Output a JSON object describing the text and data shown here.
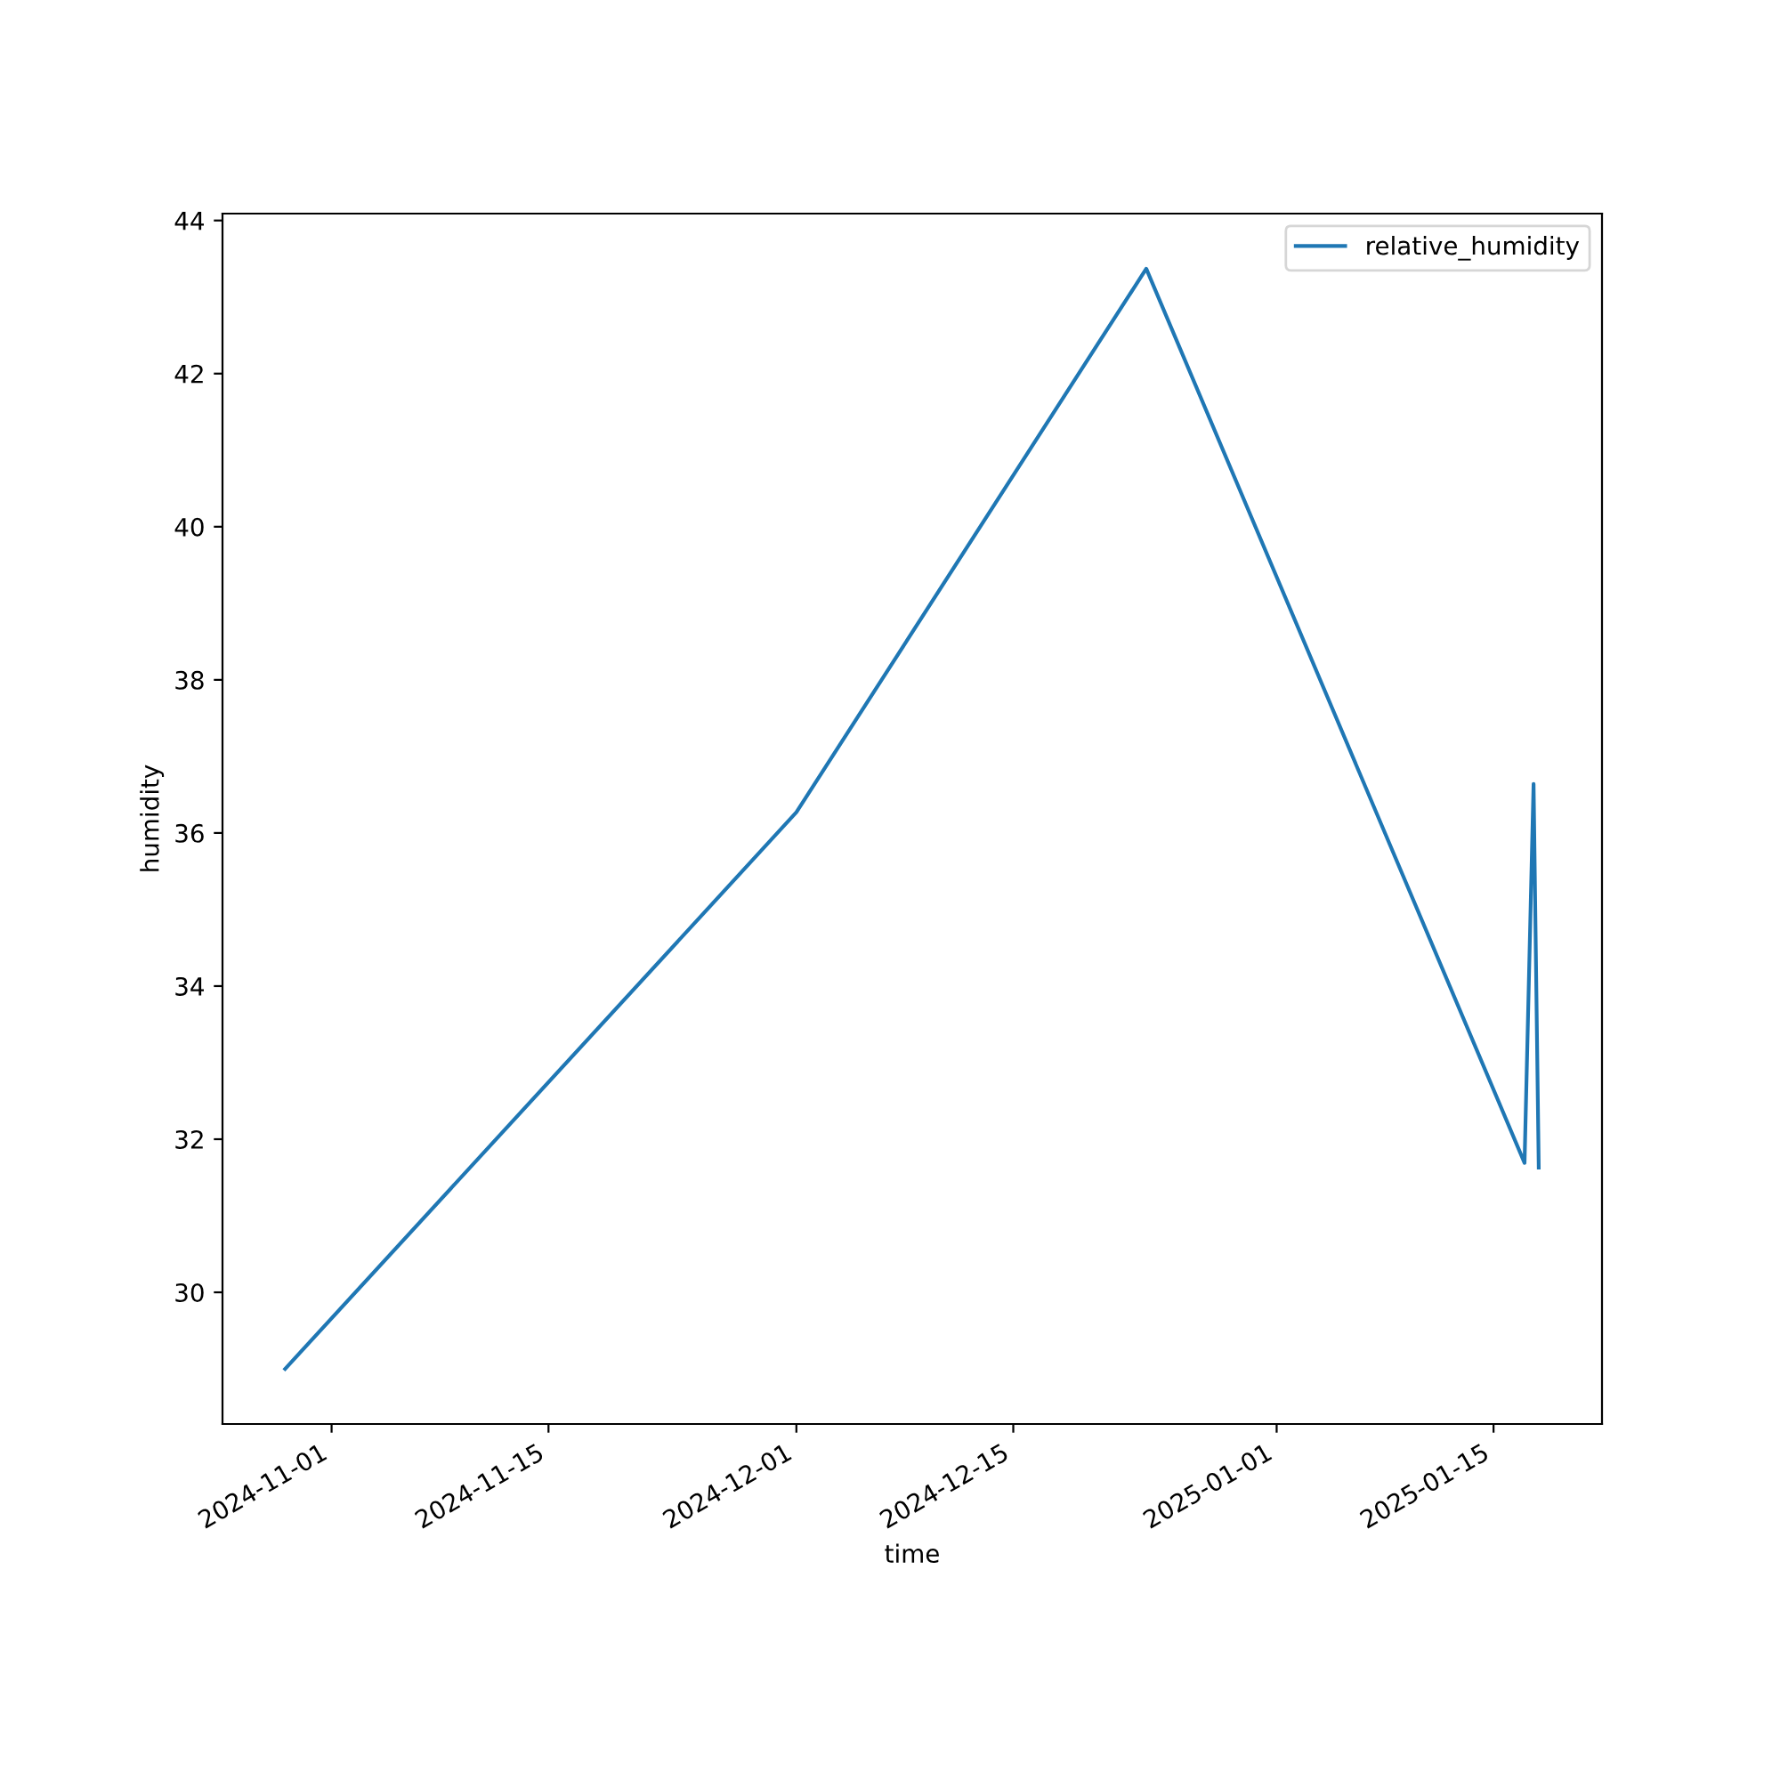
{
  "chart_data": {
    "type": "line",
    "xlabel": "time",
    "ylabel": "humidity",
    "x": [
      "2024-10-29",
      "2024-12-01",
      "2024-12-23T14:00",
      "2025-01-17",
      "2025-01-17T14:00",
      "2025-01-17T22:00"
    ],
    "series": [
      {
        "name": "relative_humidity",
        "color": "#1f77b4",
        "values": [
          29.0,
          36.27,
          43.37,
          31.69,
          36.64,
          31.63
        ]
      }
    ],
    "xlim": [
      "2024-10-24T23:00",
      "2025-01-22T00:00"
    ],
    "xticks": [
      "2024-11-01",
      "2024-11-15",
      "2024-12-01",
      "2024-12-15",
      "2025-01-01",
      "2025-01-15"
    ],
    "ylim": [
      28.28,
      44.09
    ],
    "yticks": [
      30,
      32,
      34,
      36,
      38,
      40,
      42,
      44
    ],
    "legend": "top right",
    "grid": false
  }
}
